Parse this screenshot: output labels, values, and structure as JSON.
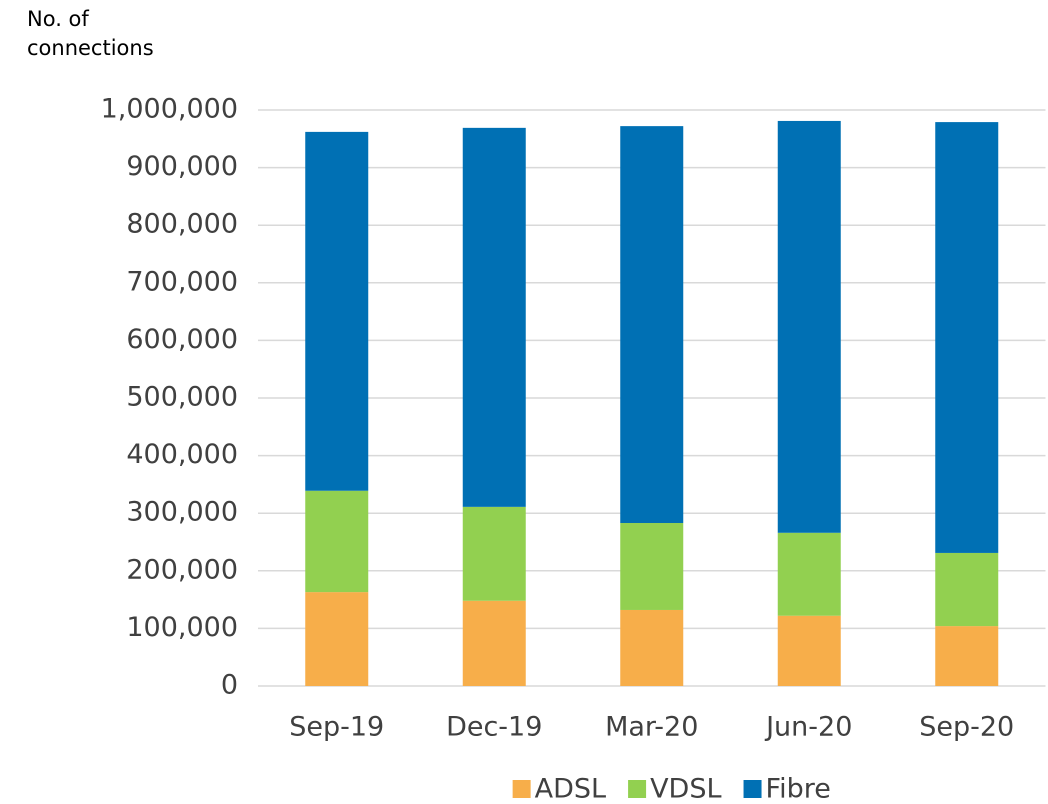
{
  "chart_data": {
    "type": "stacked_bar",
    "y_label": "No. of connections",
    "categories": [
      "Sep-19",
      "Dec-19",
      "Mar-20",
      "Jun-20",
      "Sep-20"
    ],
    "series": [
      {
        "name": "ADSL",
        "color": "#f7ae4a",
        "values": [
          163000,
          148000,
          132000,
          122000,
          104000
        ]
      },
      {
        "name": "VDSL",
        "color": "#92d050",
        "values": [
          176000,
          163000,
          151000,
          144000,
          127000
        ]
      },
      {
        "name": "Fibre",
        "color": "#0070b4",
        "values": [
          623000,
          658000,
          689000,
          715000,
          748000
        ]
      }
    ],
    "ylim": [
      0,
      1000000
    ],
    "yticks": [
      0,
      {
        "value": 100000,
        "label": "100,000"
      },
      {
        "value": 200000,
        "label": "200,000"
      },
      {
        "value": 300000,
        "label": "300,000"
      },
      {
        "value": 400000,
        "label": "400,000"
      },
      {
        "value": 500000,
        "label": "500,000"
      },
      {
        "value": 600000,
        "label": "600,000"
      },
      {
        "value": 700000,
        "label": "700,000"
      },
      {
        "value": 800000,
        "label": "800,000"
      },
      {
        "value": 900000,
        "label": "900,000"
      },
      {
        "value": 1000000,
        "label": "1,000,000"
      }
    ],
    "grid": true,
    "legend": "bottom"
  }
}
